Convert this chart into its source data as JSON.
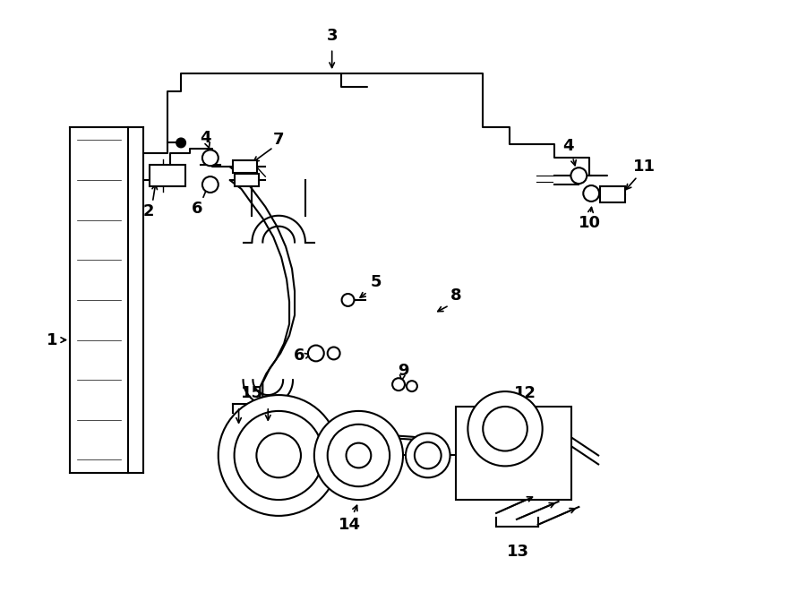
{
  "bg_color": "#ffffff",
  "line_color": "#000000",
  "fig_width": 9.0,
  "fig_height": 6.61,
  "font_size": 13
}
